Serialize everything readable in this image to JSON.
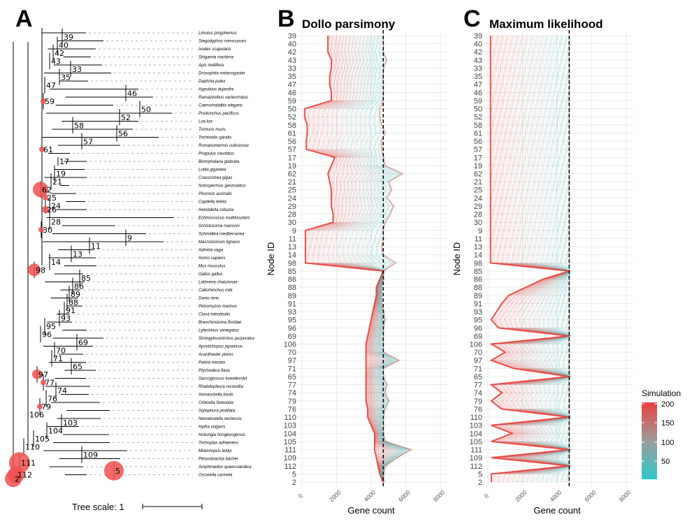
{
  "panels": {
    "a": {
      "letter": "A"
    },
    "b": {
      "letter": "B",
      "title": "Dollo parsimony"
    },
    "c": {
      "letter": "C",
      "title": "Maximum likelihood"
    }
  },
  "tree_scale": {
    "label": "Tree scale: 1"
  },
  "tree": {
    "tips": [
      "Limulus polyphemus",
      "Stegodyphus mimosarum",
      "Ixodes scapularis",
      "Strigamia maritima",
      "Apis mellifera",
      "Drosophila melanogaster",
      "Daphnia pulex",
      "Hypsibius dujardini",
      "Ramazzottius varieornatus",
      "Caenorhabditis elegans",
      "Pristionchus pacificus",
      "Loa loa",
      "Trichuris muris",
      "Trichinella spiralis",
      "Romanomermis culicivorax",
      "Priapulus caudatus",
      "Biomphalaria glabrata",
      "Lottia gigantea",
      "Crassostrea gigas",
      "Notospermus geniculatus",
      "Phoronis australis",
      "Capitella teleta",
      "Helobdella robusta",
      "Echinococcus multilocularis",
      "Schistosoma mansoni",
      "Schmidtea mediterranea",
      "Macrostomum lignano",
      "Adineta vaga",
      "Homo sapiens",
      "Mus musculus",
      "Gallus gallus",
      "Latimeria chalumnae",
      "Callorhinchus milii",
      "Danio rerio",
      "Petromyzon marinus",
      "Ciona intestinalis",
      "Branchiostoma floridae",
      "Lytechinus variegatus",
      "Strongylocentrotus purpuratus",
      "Apostichopus japonicus",
      "Acanthaster planci",
      "Patiria miniata",
      "Ptychodera flava",
      "Saccoglossus kowalevskii",
      "Rhabdopleura recondita",
      "Xenoturbella bocki",
      "Orbicella faveolata",
      "Stylophora pistillata",
      "Nematostella vectensis",
      "Hydra vulgaris",
      "Hoilungia hongkongensis",
      "Trichoplax adhaerens",
      "Mnemiopsis leidyi",
      "Pleurobrachia bachei",
      "Amphimedon queenslandica",
      "Oscarella carmela"
    ],
    "nodes": [
      {
        "id": "2",
        "circle": 12
      },
      {
        "id": "5",
        "circle": 14
      },
      {
        "id": "9"
      },
      {
        "id": "11"
      },
      {
        "id": "13"
      },
      {
        "id": "14"
      },
      {
        "id": "17"
      },
      {
        "id": "19"
      },
      {
        "id": "21"
      },
      {
        "id": "24"
      },
      {
        "id": "25",
        "circle": 4
      },
      {
        "id": "26",
        "circle": 5
      },
      {
        "id": "28"
      },
      {
        "id": "30",
        "circle": 4
      },
      {
        "id": "33"
      },
      {
        "id": "35"
      },
      {
        "id": "39"
      },
      {
        "id": "40"
      },
      {
        "id": "42"
      },
      {
        "id": "43"
      },
      {
        "id": "46"
      },
      {
        "id": "47"
      },
      {
        "id": "50"
      },
      {
        "id": "52"
      },
      {
        "id": "56"
      },
      {
        "id": "57"
      },
      {
        "id": "58"
      },
      {
        "id": "59",
        "circle": 4
      },
      {
        "id": "61",
        "circle": 4
      },
      {
        "id": "62",
        "circle": 11
      },
      {
        "id": "65"
      },
      {
        "id": "69"
      },
      {
        "id": "70"
      },
      {
        "id": "71"
      },
      {
        "id": "74"
      },
      {
        "id": "76"
      },
      {
        "id": "77",
        "circle": 4
      },
      {
        "id": "79",
        "circle": 4
      },
      {
        "id": "85"
      },
      {
        "id": "86"
      },
      {
        "id": "88"
      },
      {
        "id": "89"
      },
      {
        "id": "91"
      },
      {
        "id": "93"
      },
      {
        "id": "95"
      },
      {
        "id": "96"
      },
      {
        "id": "97",
        "circle": 7
      },
      {
        "id": "98",
        "circle": 9
      },
      {
        "id": "103"
      },
      {
        "id": "104"
      },
      {
        "id": "105"
      },
      {
        "id": "106"
      },
      {
        "id": "109"
      },
      {
        "id": "110"
      },
      {
        "id": "111",
        "circle": 15
      },
      {
        "id": "112",
        "circle": 12
      }
    ]
  },
  "chart_data": [
    {
      "type": "line",
      "panel": "B",
      "title": "Dollo parsimony",
      "xlabel": "Gene count",
      "ylabel": "Node ID",
      "xlim": [
        0,
        8000
      ],
      "xticks": [
        0,
        2000,
        4000,
        6000,
        8000
      ],
      "observed_line": 4700,
      "categories": [
        "39",
        "40",
        "42",
        "43",
        "33",
        "35",
        "47",
        "46",
        "59",
        "50",
        "52",
        "58",
        "61",
        "56",
        "57",
        "17",
        "19",
        "62",
        "21",
        "25",
        "24",
        "29",
        "28",
        "30",
        "9",
        "11",
        "13",
        "14",
        "98",
        "85",
        "86",
        "88",
        "89",
        "91",
        "93",
        "95",
        "96",
        "69",
        "106",
        "70",
        "97",
        "71",
        "65",
        "77",
        "74",
        "79",
        "76",
        "110",
        "103",
        "104",
        "105",
        "111",
        "109",
        "112",
        "5",
        "2"
      ],
      "low_nodes": [
        "50",
        "56",
        "9",
        "11",
        "13",
        "14"
      ],
      "representative_series": [
        {
          "name": "min",
          "simulation": 200,
          "values": [
            1500,
            1500,
            1500,
            1700,
            1700,
            1600,
            1600,
            1700,
            1700,
            150,
            150,
            300,
            300,
            250,
            250,
            1900,
            1700,
            1500,
            1600,
            1700,
            1700,
            1700,
            1800,
            1800,
            200,
            200,
            200,
            200,
            200,
            4700,
            4500,
            4300,
            4300,
            4200,
            4100,
            4000,
            3900,
            3800,
            3700,
            3700,
            3700,
            3700,
            3700,
            3700,
            3700,
            3700,
            3800,
            3800,
            4000,
            4200,
            4200,
            4200,
            4300,
            4400,
            4500,
            4700
          ]
        },
        {
          "name": "observed",
          "simulation": 200,
          "values": [
            4700,
            4700,
            4700,
            4900,
            4700,
            4700,
            4700,
            4700,
            4700,
            4500,
            4500,
            4600,
            4800,
            4600,
            4600,
            4700,
            4800,
            5800,
            5000,
            5200,
            4900,
            5300,
            5100,
            4800,
            4700,
            4700,
            4600,
            4700,
            5400,
            4700,
            4700,
            4600,
            4600,
            4600,
            4700,
            4800,
            4700,
            4700,
            4700,
            4700,
            5600,
            4700,
            4700,
            4900,
            4800,
            5000,
            4800,
            4700,
            4700,
            4700,
            4800,
            6300,
            5500,
            4800,
            4700,
            4700
          ]
        }
      ]
    },
    {
      "type": "line",
      "panel": "C",
      "title": "Maximum likelihood",
      "xlabel": "Gene count",
      "ylabel": "Node ID",
      "xlim": [
        0,
        8000
      ],
      "xticks": [
        0,
        2000,
        4000,
        6000,
        8000
      ],
      "observed_line": 4700,
      "categories": [
        "39",
        "40",
        "42",
        "43",
        "33",
        "35",
        "47",
        "46",
        "59",
        "50",
        "52",
        "58",
        "61",
        "56",
        "57",
        "17",
        "19",
        "62",
        "21",
        "25",
        "24",
        "29",
        "28",
        "30",
        "9",
        "11",
        "13",
        "14",
        "98",
        "85",
        "86",
        "88",
        "89",
        "91",
        "93",
        "95",
        "96",
        "69",
        "106",
        "70",
        "97",
        "71",
        "65",
        "77",
        "74",
        "79",
        "76",
        "110",
        "103",
        "104",
        "105",
        "111",
        "109",
        "112",
        "5",
        "2"
      ],
      "representative_series": [
        {
          "name": "min",
          "simulation": 200,
          "values": [
            150,
            150,
            150,
            150,
            150,
            150,
            150,
            150,
            150,
            150,
            150,
            150,
            150,
            150,
            150,
            150,
            150,
            150,
            150,
            150,
            150,
            150,
            150,
            150,
            150,
            150,
            150,
            150,
            150,
            4700,
            3200,
            2200,
            1200,
            800,
            500,
            200,
            600,
            4700,
            200,
            1000,
            200,
            1500,
            4700,
            200,
            800,
            200,
            800,
            4700,
            200,
            1400,
            200,
            4700,
            200,
            4700,
            200,
            200
          ]
        },
        {
          "name": "observed",
          "simulation": 200,
          "values": [
            4700,
            4700,
            4700,
            4700,
            4700,
            4700,
            4700,
            4700,
            4700,
            4700,
            4700,
            4700,
            4700,
            4700,
            4700,
            4700,
            4700,
            4700,
            4700,
            4700,
            4700,
            4700,
            4700,
            4700,
            4700,
            4700,
            4700,
            4700,
            4700,
            4700,
            4700,
            4700,
            4700,
            4700,
            4700,
            4700,
            4700,
            4700,
            4700,
            4700,
            4700,
            4700,
            4700,
            4700,
            4700,
            4700,
            4700,
            4700,
            4700,
            4700,
            4700,
            4700,
            4700,
            4700,
            4700,
            4700
          ]
        }
      ]
    }
  ],
  "legend": {
    "title": "Simulation",
    "labels": [
      "200",
      "150",
      "100",
      "50"
    ],
    "colors": {
      "high": "#e8413c",
      "mid": "#9c9c9c",
      "low": "#2ec8c8"
    }
  },
  "colors": {
    "red": "#e8413c",
    "teal": "#2ec8c8",
    "grid": "#e6e6e6",
    "tree": "#000000",
    "bubble": "#f05050"
  }
}
